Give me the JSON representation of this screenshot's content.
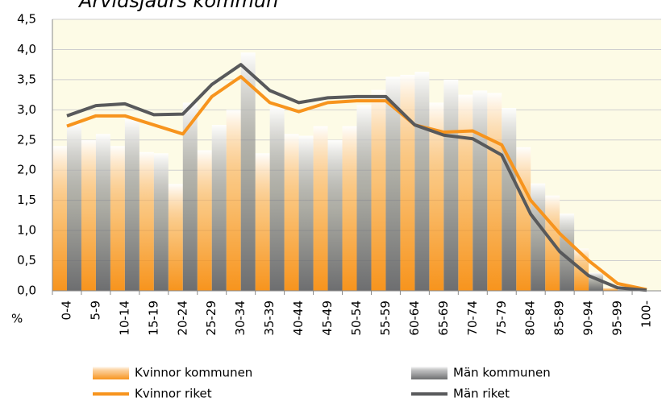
{
  "chart_data": {
    "type": "bar",
    "title": "Arvidsjaurs kommun",
    "y_label": "%",
    "categories": [
      "0-4",
      "5-9",
      "10-14",
      "15-19",
      "20-24",
      "25-29",
      "30-34",
      "35-39",
      "40-44",
      "45-49",
      "50-54",
      "55-59",
      "60-64",
      "65-69",
      "70-74",
      "75-79",
      "80-84",
      "85-89",
      "90-94",
      "95-99",
      "100-"
    ],
    "series": [
      {
        "name": "Kvinnor kommunen",
        "type": "bar",
        "color": "#f7941d",
        "values": [
          2.4,
          2.5,
          2.4,
          2.3,
          1.77,
          2.33,
          3.0,
          2.28,
          2.6,
          2.73,
          2.73,
          3.33,
          3.58,
          3.12,
          3.25,
          3.28,
          2.38,
          1.58,
          0.7,
          0.05,
          0.02
        ]
      },
      {
        "name": "Män kommunen",
        "type": "bar",
        "color": "#6d6e70",
        "values": [
          2.77,
          2.6,
          2.85,
          2.28,
          3.12,
          2.75,
          3.95,
          3.05,
          2.57,
          2.5,
          3.08,
          3.55,
          3.63,
          3.5,
          3.32,
          3.03,
          1.78,
          1.28,
          0.3,
          0.02,
          0.0
        ]
      },
      {
        "name": "Kvinnor riket",
        "type": "line",
        "color": "#f7941d",
        "values": [
          2.73,
          2.9,
          2.9,
          2.75,
          2.6,
          3.22,
          3.55,
          3.12,
          2.97,
          3.12,
          3.15,
          3.15,
          2.75,
          2.63,
          2.65,
          2.42,
          1.5,
          0.95,
          0.5,
          0.12,
          0.02
        ]
      },
      {
        "name": "Män riket",
        "type": "line",
        "color": "#58595b",
        "values": [
          2.9,
          3.07,
          3.1,
          2.92,
          2.93,
          3.42,
          3.75,
          3.32,
          3.12,
          3.2,
          3.22,
          3.22,
          2.75,
          2.58,
          2.52,
          2.25,
          1.27,
          0.65,
          0.25,
          0.05,
          0.01
        ]
      }
    ],
    "ylim": [
      0,
      4.5
    ],
    "yticks": [
      {
        "value": 0,
        "label": "0,0"
      },
      {
        "value": 0.5,
        "label": "0,5"
      },
      {
        "value": 1,
        "label": "1,0"
      },
      {
        "value": 1.5,
        "label": "1,5"
      },
      {
        "value": 2,
        "label": "2,0"
      },
      {
        "value": 2.5,
        "label": "2,5"
      },
      {
        "value": 3,
        "label": "3,0"
      },
      {
        "value": 3.5,
        "label": "3,5"
      },
      {
        "value": 4,
        "label": "4,0"
      },
      {
        "value": 4.5,
        "label": "4,5"
      }
    ],
    "grid": true,
    "plot_background": "#fdfbe6"
  }
}
